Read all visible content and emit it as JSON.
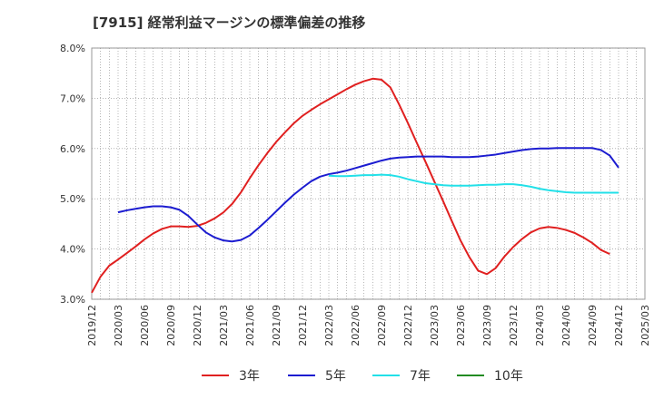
{
  "chart_data": {
    "type": "line",
    "title": "[7915]  経常利益マージンの標準偏差の推移",
    "xlabel": "",
    "ylabel": "",
    "ylim": [
      3.0,
      8.0
    ],
    "y_ticks": [
      "3.0%",
      "4.0%",
      "5.0%",
      "6.0%",
      "7.0%",
      "8.0%"
    ],
    "x_ticks": [
      "2019/12",
      "2020/03",
      "2020/06",
      "2020/09",
      "2020/12",
      "2021/03",
      "2021/06",
      "2021/09",
      "2021/12",
      "2022/03",
      "2022/06",
      "2022/09",
      "2022/12",
      "2023/03",
      "2023/06",
      "2023/09",
      "2023/12",
      "2024/03",
      "2024/06",
      "2024/09",
      "2024/12",
      "2025/03"
    ],
    "grid": true,
    "legend_position": "bottom",
    "series": [
      {
        "name": "3年",
        "color": "#e02020",
        "points": [
          [
            "2019/12",
            3.13
          ],
          [
            "2020/01",
            3.45
          ],
          [
            "2020/02",
            3.67
          ],
          [
            "2020/03",
            3.79
          ],
          [
            "2020/04",
            3.92
          ],
          [
            "2020/05",
            4.05
          ],
          [
            "2020/06",
            4.19
          ],
          [
            "2020/07",
            4.31
          ],
          [
            "2020/08",
            4.4
          ],
          [
            "2020/09",
            4.45
          ],
          [
            "2020/10",
            4.45
          ],
          [
            "2020/11",
            4.44
          ],
          [
            "2020/12",
            4.46
          ],
          [
            "2021/01",
            4.52
          ],
          [
            "2021/02",
            4.61
          ],
          [
            "2021/03",
            4.73
          ],
          [
            "2021/04",
            4.9
          ],
          [
            "2021/05",
            5.13
          ],
          [
            "2021/06",
            5.41
          ],
          [
            "2021/07",
            5.67
          ],
          [
            "2021/08",
            5.91
          ],
          [
            "2021/09",
            6.13
          ],
          [
            "2021/10",
            6.32
          ],
          [
            "2021/11",
            6.5
          ],
          [
            "2021/12",
            6.65
          ],
          [
            "2022/01",
            6.77
          ],
          [
            "2022/02",
            6.88
          ],
          [
            "2022/03",
            6.98
          ],
          [
            "2022/04",
            7.08
          ],
          [
            "2022/05",
            7.18
          ],
          [
            "2022/06",
            7.27
          ],
          [
            "2022/07",
            7.34
          ],
          [
            "2022/08",
            7.39
          ],
          [
            "2022/09",
            7.37
          ],
          [
            "2022/10",
            7.22
          ],
          [
            "2022/11",
            6.88
          ],
          [
            "2022/12",
            6.51
          ],
          [
            "2023/01",
            6.12
          ],
          [
            "2023/02",
            5.74
          ],
          [
            "2023/03",
            5.35
          ],
          [
            "2023/04",
            4.96
          ],
          [
            "2023/05",
            4.56
          ],
          [
            "2023/06",
            4.17
          ],
          [
            "2023/07",
            3.84
          ],
          [
            "2023/08",
            3.57
          ],
          [
            "2023/09",
            3.5
          ],
          [
            "2023/10",
            3.62
          ],
          [
            "2023/11",
            3.85
          ],
          [
            "2023/12",
            4.04
          ],
          [
            "2024/01",
            4.2
          ],
          [
            "2024/02",
            4.33
          ],
          [
            "2024/03",
            4.41
          ],
          [
            "2024/04",
            4.44
          ],
          [
            "2024/05",
            4.42
          ],
          [
            "2024/06",
            4.38
          ],
          [
            "2024/07",
            4.32
          ],
          [
            "2024/08",
            4.23
          ],
          [
            "2024/09",
            4.12
          ],
          [
            "2024/10",
            3.98
          ],
          [
            "2024/11",
            3.9
          ]
        ]
      },
      {
        "name": "5年",
        "color": "#1c1cd0",
        "points": [
          [
            "2020/03",
            4.73
          ],
          [
            "2020/04",
            4.77
          ],
          [
            "2020/05",
            4.8
          ],
          [
            "2020/06",
            4.83
          ],
          [
            "2020/07",
            4.85
          ],
          [
            "2020/08",
            4.85
          ],
          [
            "2020/09",
            4.83
          ],
          [
            "2020/10",
            4.78
          ],
          [
            "2020/11",
            4.66
          ],
          [
            "2020/12",
            4.49
          ],
          [
            "2021/01",
            4.33
          ],
          [
            "2021/02",
            4.23
          ],
          [
            "2021/03",
            4.17
          ],
          [
            "2021/04",
            4.15
          ],
          [
            "2021/05",
            4.18
          ],
          [
            "2021/06",
            4.27
          ],
          [
            "2021/07",
            4.42
          ],
          [
            "2021/08",
            4.58
          ],
          [
            "2021/09",
            4.75
          ],
          [
            "2021/10",
            4.92
          ],
          [
            "2021/11",
            5.08
          ],
          [
            "2021/12",
            5.22
          ],
          [
            "2022/01",
            5.35
          ],
          [
            "2022/02",
            5.44
          ],
          [
            "2022/03",
            5.49
          ],
          [
            "2022/04",
            5.52
          ],
          [
            "2022/05",
            5.56
          ],
          [
            "2022/06",
            5.61
          ],
          [
            "2022/07",
            5.66
          ],
          [
            "2022/08",
            5.71
          ],
          [
            "2022/09",
            5.76
          ],
          [
            "2022/10",
            5.8
          ],
          [
            "2022/11",
            5.82
          ],
          [
            "2022/12",
            5.83
          ],
          [
            "2023/01",
            5.84
          ],
          [
            "2023/02",
            5.84
          ],
          [
            "2023/03",
            5.84
          ],
          [
            "2023/04",
            5.84
          ],
          [
            "2023/05",
            5.83
          ],
          [
            "2023/06",
            5.83
          ],
          [
            "2023/07",
            5.83
          ],
          [
            "2023/08",
            5.84
          ],
          [
            "2023/09",
            5.86
          ],
          [
            "2023/10",
            5.88
          ],
          [
            "2023/11",
            5.91
          ],
          [
            "2023/12",
            5.94
          ],
          [
            "2024/01",
            5.97
          ],
          [
            "2024/02",
            5.99
          ],
          [
            "2024/03",
            6.0
          ],
          [
            "2024/04",
            6.0
          ],
          [
            "2024/05",
            6.01
          ],
          [
            "2024/06",
            6.01
          ],
          [
            "2024/07",
            6.01
          ],
          [
            "2024/08",
            6.01
          ],
          [
            "2024/09",
            6.01
          ],
          [
            "2024/10",
            5.97
          ],
          [
            "2024/11",
            5.86
          ],
          [
            "2024/12",
            5.62
          ]
        ]
      },
      {
        "name": "7年",
        "color": "#22e0e8",
        "points": [
          [
            "2022/03",
            5.46
          ],
          [
            "2022/04",
            5.45
          ],
          [
            "2022/05",
            5.45
          ],
          [
            "2022/06",
            5.46
          ],
          [
            "2022/07",
            5.47
          ],
          [
            "2022/08",
            5.47
          ],
          [
            "2022/09",
            5.48
          ],
          [
            "2022/10",
            5.47
          ],
          [
            "2022/11",
            5.44
          ],
          [
            "2022/12",
            5.39
          ],
          [
            "2023/01",
            5.35
          ],
          [
            "2023/02",
            5.31
          ],
          [
            "2023/03",
            5.29
          ],
          [
            "2023/04",
            5.27
          ],
          [
            "2023/05",
            5.26
          ],
          [
            "2023/06",
            5.26
          ],
          [
            "2023/07",
            5.26
          ],
          [
            "2023/08",
            5.27
          ],
          [
            "2023/09",
            5.28
          ],
          [
            "2023/10",
            5.28
          ],
          [
            "2023/11",
            5.29
          ],
          [
            "2023/12",
            5.29
          ],
          [
            "2024/01",
            5.27
          ],
          [
            "2024/02",
            5.24
          ],
          [
            "2024/03",
            5.2
          ],
          [
            "2024/04",
            5.17
          ],
          [
            "2024/05",
            5.15
          ],
          [
            "2024/06",
            5.13
          ],
          [
            "2024/07",
            5.12
          ],
          [
            "2024/08",
            5.12
          ],
          [
            "2024/09",
            5.12
          ],
          [
            "2024/10",
            5.12
          ],
          [
            "2024/11",
            5.12
          ],
          [
            "2024/12",
            5.12
          ]
        ]
      },
      {
        "name": "10年",
        "color": "#228b22",
        "points": []
      }
    ]
  }
}
